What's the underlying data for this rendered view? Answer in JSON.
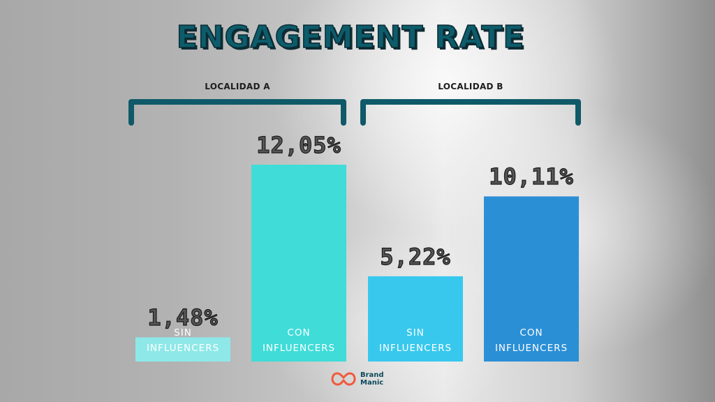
{
  "title": "ENGAGEMENT RATE",
  "groups": [
    {
      "label": "LOCALIDAD A"
    },
    {
      "label": "LOCALIDAD B"
    }
  ],
  "logo": {
    "line1": "Brand",
    "line2": "Manic",
    "icon": "brand-manic-logo-icon",
    "color": "#f05a3c"
  },
  "chart_data": {
    "type": "bar",
    "title": "ENGAGEMENT RATE",
    "groups": [
      "LOCALIDAD A",
      "LOCALIDAD B"
    ],
    "categories": [
      "SIN INFLUENCERS",
      "CON INFLUENCERS",
      "SIN INFLUENCERS",
      "CON INFLUENCERS"
    ],
    "category_lines": [
      [
        "SIN",
        "INFLUENCERS"
      ],
      [
        "CON",
        "INFLUENCERS"
      ],
      [
        "SIN",
        "INFLUENCERS"
      ],
      [
        "CON",
        "INFLUENCERS"
      ]
    ],
    "values": [
      1.48,
      12.05,
      5.22,
      10.11
    ],
    "value_labels": [
      "1,48%",
      "12,05%",
      "5,22%",
      "10,11%"
    ],
    "colors": [
      "#8ee8e8",
      "#3fdcd8",
      "#38c8ee",
      "#2b8fd6"
    ],
    "bracket_color": "#0f5968",
    "grid": false
  }
}
